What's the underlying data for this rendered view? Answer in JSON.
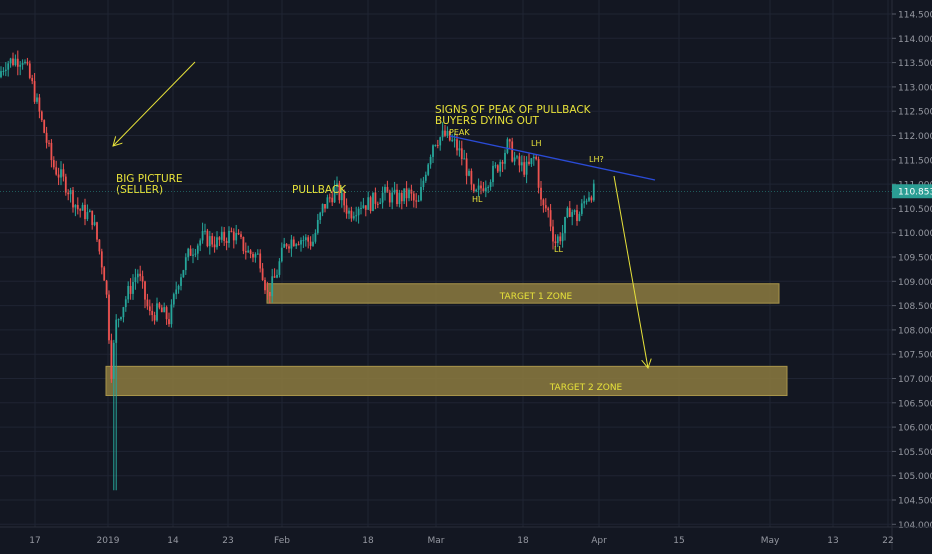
{
  "chart_data": {
    "type": "candlestick",
    "title": "",
    "xlabel": "",
    "ylabel": "",
    "grid": true,
    "ylim": [
      103.7,
      114.9
    ],
    "y_ticks": [
      104.0,
      104.5,
      105.0,
      105.5,
      106.0,
      106.5,
      107.0,
      107.5,
      108.0,
      108.5,
      109.0,
      109.5,
      110.0,
      110.5,
      111.0,
      111.5,
      112.0,
      112.5,
      113.0,
      113.5,
      114.0,
      114.5
    ],
    "x_ticks": [
      "17",
      "2019",
      "14",
      "23",
      "Feb",
      "18",
      "Mar",
      "18",
      "Apr",
      "15",
      "May",
      "13",
      "22"
    ],
    "last_price": 110.853,
    "ohlc_keypoints": [
      {
        "label": "start",
        "price": 113.3
      },
      {
        "label": "high",
        "price": 113.6
      },
      {
        "label": "flash crash low",
        "price": 104.7
      },
      {
        "label": "PEAK",
        "price": 112.0
      },
      {
        "label": "HL",
        "price": 110.5
      },
      {
        "label": "LH",
        "price": 111.8
      },
      {
        "label": "LL",
        "price": 109.8
      },
      {
        "label": "last",
        "price": 110.85
      }
    ],
    "zones": [
      {
        "label": "TARGET 1 ZONE",
        "y_low": 108.55,
        "y_high": 108.95
      },
      {
        "label": "TARGET 2 ZONE",
        "y_low": 106.65,
        "y_high": 107.25
      }
    ],
    "annotations": {
      "big_picture": [
        "BIG PICTURE",
        "(SELLER)"
      ],
      "pullback": "PULLBACK",
      "signs": [
        "SIGNS OF PEAK OF PULLBACK",
        "BUYERS DYING OUT"
      ],
      "peak": "PEAK",
      "hl": "HL",
      "lh": "LH",
      "lh_q": "LH?",
      "ll": "LL"
    },
    "colors": {
      "background": "#131722",
      "up": "#26a69a",
      "down": "#ef5350",
      "grid": "#1f2433",
      "zone": "#8d7b3f",
      "annotation": "#e7e23a",
      "trendline": "#2a4bd6",
      "price_tag": "#2b9e94"
    }
  }
}
